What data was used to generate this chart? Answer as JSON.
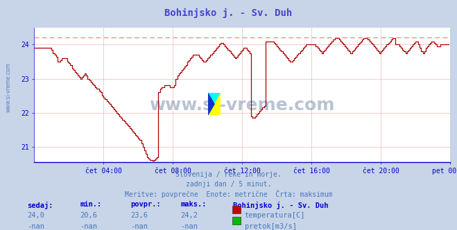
{
  "title": "Bohinjsko j. - Sv. Duh",
  "title_color": "#4444cc",
  "bg_color": "#c8d4e8",
  "plot_bg_color": "#ffffff",
  "axis_color": "#0000cc",
  "grid_color": "#e8b0b0",
  "ylim": [
    20.55,
    24.5
  ],
  "yticks": [
    21,
    22,
    23,
    24
  ],
  "xtick_labels": [
    "čet 04:00",
    "čet 08:00",
    "čet 12:00",
    "čet 16:00",
    "čet 20:00",
    "pet 00:00"
  ],
  "line_color": "#aa0000",
  "max_line_color": "#ff8888",
  "max_line_value": 24.22,
  "footer_lines": [
    "Slovenija / reke in morje.",
    "zadnji dan / 5 minut.",
    "Meritve: povprečne  Enote: metrične  Črta: maksimum"
  ],
  "footer_color": "#4477bb",
  "table_header_color": "#0000cc",
  "table_value_color": "#4477bb",
  "table_headers": [
    "sedaj:",
    "min.:",
    "povpr.:",
    "maks.:"
  ],
  "table_row1_values": [
    "24,0",
    "20,6",
    "23,6",
    "24,2"
  ],
  "table_row2_values": [
    "-nan",
    "-nan",
    "-nan",
    "-nan"
  ],
  "station_name": "Bohinjsko j. - Sv. Duh",
  "legend_items": [
    {
      "label": "temperatura[C]",
      "color": "#cc0000"
    },
    {
      "label": "pretok[m3/s]",
      "color": "#00bb00"
    }
  ],
  "watermark": "www.si-vreme.com",
  "watermark_color": "#1a3a6a",
  "left_watermark": "www.si-vreme.com",
  "n_points": 288,
  "temp_data": [
    23.9,
    23.9,
    23.9,
    23.9,
    23.9,
    23.9,
    23.9,
    23.9,
    23.9,
    23.9,
    23.9,
    23.9,
    23.85,
    23.75,
    23.7,
    23.65,
    23.5,
    23.5,
    23.55,
    23.6,
    23.6,
    23.6,
    23.6,
    23.5,
    23.45,
    23.4,
    23.3,
    23.25,
    23.2,
    23.15,
    23.1,
    23.05,
    23.0,
    23.05,
    23.1,
    23.15,
    23.1,
    23.0,
    22.95,
    22.9,
    22.85,
    22.8,
    22.75,
    22.7,
    22.7,
    22.65,
    22.6,
    22.5,
    22.45,
    22.4,
    22.35,
    22.3,
    22.25,
    22.2,
    22.15,
    22.1,
    22.05,
    22.0,
    21.95,
    21.9,
    21.85,
    21.8,
    21.75,
    21.7,
    21.65,
    21.6,
    21.55,
    21.5,
    21.45,
    21.4,
    21.35,
    21.3,
    21.25,
    21.2,
    21.1,
    21.0,
    20.9,
    20.8,
    20.7,
    20.65,
    20.62,
    20.61,
    20.6,
    20.61,
    20.65,
    20.7,
    22.6,
    22.7,
    22.75,
    22.75,
    22.8,
    22.8,
    22.8,
    22.8,
    22.75,
    22.75,
    22.75,
    22.8,
    23.0,
    23.1,
    23.15,
    23.2,
    23.25,
    23.3,
    23.35,
    23.4,
    23.5,
    23.55,
    23.6,
    23.65,
    23.7,
    23.7,
    23.7,
    23.7,
    23.65,
    23.6,
    23.55,
    23.5,
    23.5,
    23.55,
    23.6,
    23.65,
    23.7,
    23.75,
    23.8,
    23.85,
    23.9,
    23.95,
    24.0,
    24.05,
    24.05,
    24.0,
    23.95,
    23.9,
    23.85,
    23.8,
    23.75,
    23.7,
    23.65,
    23.6,
    23.65,
    23.7,
    23.75,
    23.8,
    23.85,
    23.9,
    23.9,
    23.85,
    23.8,
    23.75,
    21.9,
    21.85,
    21.85,
    21.9,
    21.95,
    22.0,
    22.05,
    22.1,
    22.15,
    22.2,
    24.1,
    24.1,
    24.1,
    24.1,
    24.1,
    24.1,
    24.05,
    24.0,
    23.95,
    23.9,
    23.85,
    23.8,
    23.75,
    23.7,
    23.65,
    23.6,
    23.55,
    23.5,
    23.5,
    23.55,
    23.6,
    23.65,
    23.7,
    23.75,
    23.8,
    23.85,
    23.9,
    23.95,
    24.0,
    24.0,
    24.0,
    24.0,
    24.0,
    24.0,
    24.0,
    23.95,
    23.9,
    23.85,
    23.8,
    23.75,
    23.8,
    23.85,
    23.9,
    23.95,
    24.0,
    24.05,
    24.1,
    24.15,
    24.2,
    24.2,
    24.2,
    24.15,
    24.1,
    24.05,
    24.0,
    23.95,
    23.9,
    23.85,
    23.8,
    23.75,
    23.8,
    23.85,
    23.9,
    23.95,
    24.0,
    24.05,
    24.1,
    24.15,
    24.2,
    24.2,
    24.2,
    24.15,
    24.1,
    24.05,
    24.0,
    23.95,
    23.9,
    23.85,
    23.8,
    23.75,
    23.8,
    23.85,
    23.9,
    23.95,
    24.0,
    24.05,
    24.1,
    24.15,
    24.2,
    24.2,
    24.0,
    24.0,
    24.0,
    23.95,
    23.9,
    23.85,
    23.8,
    23.75,
    23.8,
    23.85,
    23.9,
    23.95,
    24.0,
    24.05,
    24.1,
    24.1,
    24.0,
    23.9,
    23.8,
    23.75,
    23.8,
    23.9,
    23.95,
    24.0,
    24.05,
    24.1,
    24.1,
    24.05,
    24.0,
    23.95,
    23.95,
    24.0,
    24.0,
    24.0,
    24.0,
    24.0,
    24.0,
    24.0,
    24.0,
    24.0
  ]
}
